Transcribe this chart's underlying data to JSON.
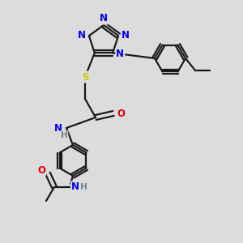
{
  "bg_color": "#dcdcdc",
  "bond_color": "#1a1a1a",
  "bond_lw": 1.6,
  "atom_colors": {
    "N": "#0000ee",
    "O": "#dd0000",
    "S": "#cccc00",
    "H": "#708090",
    "C": "#1a1a1a"
  },
  "font_size": 8.5,
  "font_size_small": 7.5
}
